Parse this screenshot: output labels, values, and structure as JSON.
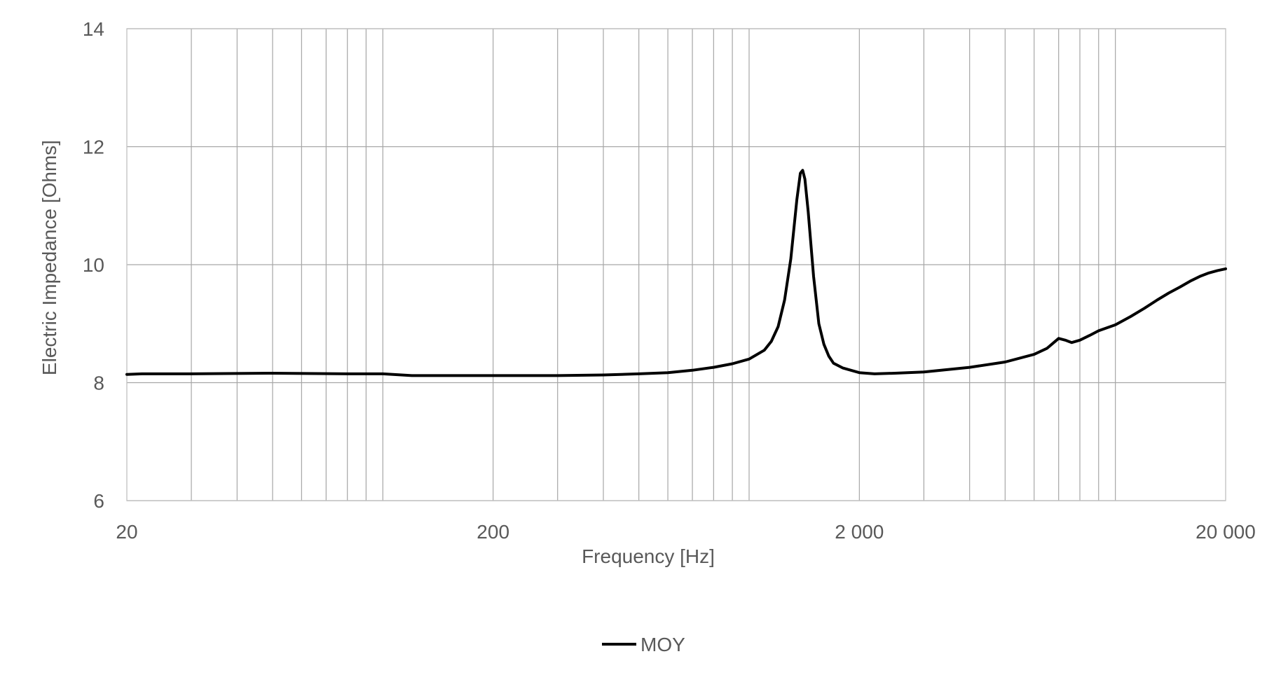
{
  "chart_data": {
    "type": "line",
    "title": "",
    "xlabel": "Frequency [Hz]",
    "ylabel": "Electric Impedance [Ohms]",
    "x_scale": "log",
    "xlim": [
      20,
      20000
    ],
    "ylim": [
      6,
      14
    ],
    "x_tick_values": [
      20,
      200,
      2000,
      20000
    ],
    "x_tick_labels": [
      "20",
      "200",
      "2 000",
      "20 000"
    ],
    "y_tick_values": [
      6,
      8,
      10,
      12,
      14
    ],
    "y_tick_labels": [
      "6",
      "8",
      "10",
      "12",
      "14"
    ],
    "grid": true,
    "legend_position": "bottom",
    "series": [
      {
        "name": "MOY",
        "color": "#000000",
        "x": [
          20,
          22,
          30,
          50,
          80,
          100,
          120,
          150,
          200,
          300,
          400,
          500,
          600,
          700,
          800,
          900,
          1000,
          1100,
          1150,
          1200,
          1250,
          1300,
          1350,
          1380,
          1400,
          1420,
          1450,
          1500,
          1550,
          1600,
          1650,
          1700,
          1800,
          2000,
          2200,
          2500,
          3000,
          4000,
          5000,
          6000,
          6500,
          7000,
          7300,
          7600,
          8000,
          8500,
          9000,
          10000,
          11000,
          12000,
          13000,
          14000,
          15000,
          16000,
          17000,
          18000,
          19000,
          20000
        ],
        "y": [
          8.14,
          8.15,
          8.15,
          8.16,
          8.15,
          8.15,
          8.12,
          8.12,
          8.12,
          8.12,
          8.13,
          8.15,
          8.17,
          8.21,
          8.26,
          8.32,
          8.4,
          8.55,
          8.7,
          8.95,
          9.4,
          10.1,
          11.1,
          11.55,
          11.6,
          11.45,
          10.9,
          9.8,
          9.0,
          8.65,
          8.45,
          8.33,
          8.25,
          8.17,
          8.15,
          8.16,
          8.18,
          8.26,
          8.35,
          8.48,
          8.58,
          8.75,
          8.72,
          8.68,
          8.72,
          8.8,
          8.88,
          8.98,
          9.12,
          9.26,
          9.4,
          9.52,
          9.62,
          9.72,
          9.8,
          9.86,
          9.9,
          9.93
        ]
      }
    ]
  }
}
